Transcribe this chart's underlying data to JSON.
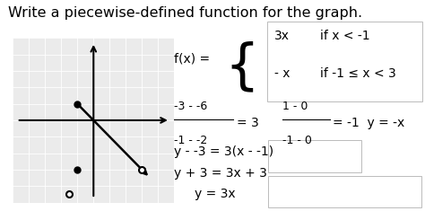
{
  "title": "Write a piecewise-defined function for the graph.",
  "title_fontsize": 11.5,
  "bg_color": "#ffffff",
  "graph_bg": "#ebebeb",
  "graph_xlim": [
    -5,
    5
  ],
  "graph_ylim": [
    -5,
    5
  ],
  "piece1": "3x",
  "cond1": "if x < -1",
  "piece2": "- x",
  "cond2": "if -1 ≤ x < 3"
}
